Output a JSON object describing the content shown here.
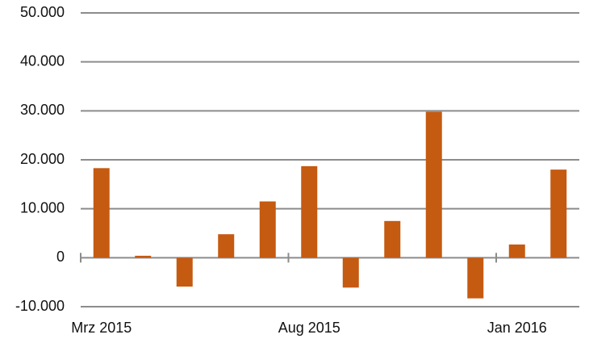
{
  "chart_data": {
    "type": "bar",
    "categories": [
      "Mrz 2015",
      null,
      null,
      null,
      null,
      "Aug 2015",
      null,
      null,
      null,
      null,
      "Jan 2016",
      null
    ],
    "values": [
      18300,
      400,
      -5900,
      4800,
      11500,
      18700,
      -6100,
      7500,
      29800,
      -8300,
      2700,
      18000
    ],
    "color": "#c55a11",
    "ylim": [
      -10000,
      50000
    ],
    "yticks": [
      {
        "value": -10000,
        "label": "-10.000"
      },
      0,
      {
        "value": 10000,
        "label": "10.000"
      },
      {
        "value": 20000,
        "label": "20.000"
      },
      {
        "value": 30000,
        "label": "30.000"
      },
      {
        "value": 40000,
        "label": "40.000"
      },
      {
        "value": 50000,
        "label": "50.000"
      }
    ],
    "grid": true
  }
}
